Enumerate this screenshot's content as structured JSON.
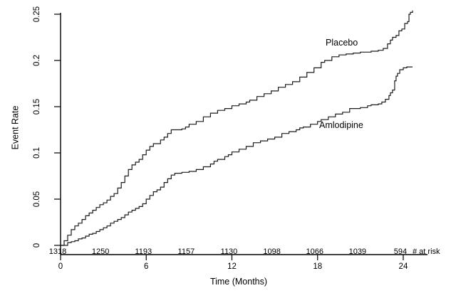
{
  "figure_colors": {
    "background": "#ffffff",
    "axis": "#000000",
    "curve": "#1c1c1c",
    "text": "#000000"
  },
  "chart_data": {
    "type": "line",
    "subtype": "kaplan-meier-step",
    "title": "",
    "xlabel": "Time (Months)",
    "ylabel": "Event Rate",
    "xlim": [
      0,
      24.65
    ],
    "ylim": [
      0,
      0.25
    ],
    "grid": false,
    "legend_position": "inline-labels",
    "x_tick_values": [
      0,
      6,
      12,
      18,
      24
    ],
    "x_tick_labels": [
      "0",
      "6",
      "12",
      "18",
      "24"
    ],
    "y_tick_values": [
      0,
      0.05,
      0.1,
      0.15,
      0.2,
      0.25
    ],
    "y_tick_labels": [
      "0",
      "0.05",
      "0.1",
      "0.15",
      "0.2",
      "0.25"
    ],
    "series": [
      {
        "name": "Placebo",
        "color": "#1c1c1c",
        "points": [
          [
            0,
            0
          ],
          [
            0.25,
            0.005
          ],
          [
            0.5,
            0.011
          ],
          [
            0.75,
            0.017
          ],
          [
            1,
            0.021
          ],
          [
            1.25,
            0.024
          ],
          [
            1.5,
            0.028
          ],
          [
            1.75,
            0.032
          ],
          [
            2,
            0.035
          ],
          [
            2.25,
            0.038
          ],
          [
            2.5,
            0.041
          ],
          [
            2.75,
            0.044
          ],
          [
            3,
            0.046
          ],
          [
            3.25,
            0.049
          ],
          [
            3.5,
            0.053
          ],
          [
            3.75,
            0.056
          ],
          [
            4,
            0.062
          ],
          [
            4.25,
            0.068
          ],
          [
            4.5,
            0.075
          ],
          [
            4.75,
            0.082
          ],
          [
            5,
            0.087
          ],
          [
            5.25,
            0.09
          ],
          [
            5.5,
            0.093
          ],
          [
            5.75,
            0.098
          ],
          [
            6,
            0.103
          ],
          [
            6.25,
            0.107
          ],
          [
            6.5,
            0.11
          ],
          [
            7,
            0.114
          ],
          [
            7.25,
            0.117
          ],
          [
            7.5,
            0.121
          ],
          [
            7.75,
            0.125
          ],
          [
            8.5,
            0.126
          ],
          [
            8.75,
            0.128
          ],
          [
            9,
            0.131
          ],
          [
            9.5,
            0.134
          ],
          [
            10,
            0.139
          ],
          [
            10.5,
            0.143
          ],
          [
            11,
            0.146
          ],
          [
            11.5,
            0.148
          ],
          [
            12,
            0.151
          ],
          [
            12.5,
            0.153
          ],
          [
            13,
            0.155
          ],
          [
            13.25,
            0.157
          ],
          [
            13.75,
            0.161
          ],
          [
            14.25,
            0.164
          ],
          [
            14.75,
            0.167
          ],
          [
            15.25,
            0.171
          ],
          [
            15.75,
            0.174
          ],
          [
            16.25,
            0.177
          ],
          [
            16.75,
            0.182
          ],
          [
            17.25,
            0.187
          ],
          [
            17.75,
            0.192
          ],
          [
            18.25,
            0.198
          ],
          [
            18.5,
            0.2
          ],
          [
            19,
            0.204
          ],
          [
            19.5,
            0.206
          ],
          [
            20,
            0.207
          ],
          [
            20.5,
            0.208
          ],
          [
            21,
            0.209
          ],
          [
            21.75,
            0.21
          ],
          [
            22.25,
            0.211
          ],
          [
            22.6,
            0.213
          ],
          [
            22.9,
            0.218
          ],
          [
            23.1,
            0.222
          ],
          [
            23.25,
            0.225
          ],
          [
            23.5,
            0.227
          ],
          [
            23.7,
            0.232
          ],
          [
            23.9,
            0.234
          ],
          [
            24.1,
            0.24
          ],
          [
            24.3,
            0.242
          ],
          [
            24.4,
            0.25
          ],
          [
            24.5,
            0.252
          ],
          [
            24.65,
            0.254
          ]
        ]
      },
      {
        "name": "Amlodipine",
        "color": "#1c1c1c",
        "points": [
          [
            0,
            0
          ],
          [
            0.5,
            0.003
          ],
          [
            0.75,
            0.004
          ],
          [
            1,
            0.005
          ],
          [
            1.25,
            0.007
          ],
          [
            1.5,
            0.008
          ],
          [
            1.75,
            0.01
          ],
          [
            2,
            0.012
          ],
          [
            2.25,
            0.013
          ],
          [
            2.5,
            0.015
          ],
          [
            2.75,
            0.017
          ],
          [
            3,
            0.019
          ],
          [
            3.25,
            0.021
          ],
          [
            3.5,
            0.024
          ],
          [
            3.75,
            0.026
          ],
          [
            4,
            0.028
          ],
          [
            4.25,
            0.03
          ],
          [
            4.5,
            0.033
          ],
          [
            4.75,
            0.036
          ],
          [
            5,
            0.038
          ],
          [
            5.25,
            0.04
          ],
          [
            5.5,
            0.042
          ],
          [
            5.75,
            0.045
          ],
          [
            6,
            0.05
          ],
          [
            6.25,
            0.054
          ],
          [
            6.5,
            0.058
          ],
          [
            6.75,
            0.06
          ],
          [
            7,
            0.063
          ],
          [
            7.25,
            0.068
          ],
          [
            7.5,
            0.072
          ],
          [
            7.75,
            0.076
          ],
          [
            8,
            0.078
          ],
          [
            8.5,
            0.079
          ],
          [
            9,
            0.08
          ],
          [
            9.5,
            0.082
          ],
          [
            10,
            0.085
          ],
          [
            10.5,
            0.088
          ],
          [
            10.75,
            0.091
          ],
          [
            11,
            0.093
          ],
          [
            11.5,
            0.096
          ],
          [
            11.75,
            0.098
          ],
          [
            12,
            0.101
          ],
          [
            12.5,
            0.104
          ],
          [
            13,
            0.107
          ],
          [
            13.5,
            0.111
          ],
          [
            14,
            0.113
          ],
          [
            14.5,
            0.115
          ],
          [
            15,
            0.117
          ],
          [
            15.5,
            0.121
          ],
          [
            16,
            0.123
          ],
          [
            16.5,
            0.125
          ],
          [
            16.75,
            0.127
          ],
          [
            17,
            0.128
          ],
          [
            17.5,
            0.131
          ],
          [
            18,
            0.134
          ],
          [
            18.25,
            0.136
          ],
          [
            18.75,
            0.139
          ],
          [
            19.25,
            0.142
          ],
          [
            19.75,
            0.144
          ],
          [
            20.25,
            0.148
          ],
          [
            21,
            0.149
          ],
          [
            21.5,
            0.151
          ],
          [
            21.75,
            0.152
          ],
          [
            22.25,
            0.153
          ],
          [
            22.5,
            0.155
          ],
          [
            22.75,
            0.158
          ],
          [
            23,
            0.162
          ],
          [
            23.1,
            0.165
          ],
          [
            23.25,
            0.168
          ],
          [
            23.4,
            0.178
          ],
          [
            23.5,
            0.183
          ],
          [
            23.6,
            0.186
          ],
          [
            23.75,
            0.19
          ],
          [
            24,
            0.192
          ],
          [
            24.25,
            0.193
          ],
          [
            24.65,
            0.193
          ]
        ]
      }
    ],
    "annotations": [
      {
        "text": "Placebo",
        "x_months": 19.7,
        "y_value": 0.222
      },
      {
        "text": "Amlodipine",
        "x_months": 19.6,
        "y_value": 0.128
      }
    ],
    "number_at_risk": {
      "label": "# at risk",
      "times": [
        0,
        3,
        6,
        9,
        12,
        15,
        18,
        21,
        24
      ],
      "counts": [
        "1318",
        "1250",
        "1193",
        "1157",
        "1130",
        "1098",
        "1066",
        "1039",
        "594"
      ]
    }
  }
}
